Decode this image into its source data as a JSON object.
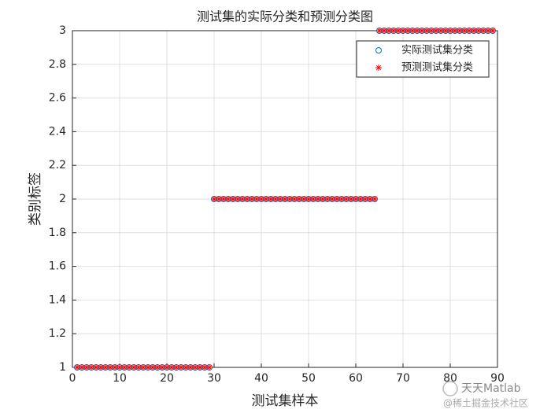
{
  "chart_data": {
    "type": "scatter",
    "title": "测试集的实际分类和预测分类图",
    "xlabel": "测试集样本",
    "ylabel": "类别标签",
    "x": [
      1,
      2,
      3,
      4,
      5,
      6,
      7,
      8,
      9,
      10,
      11,
      12,
      13,
      14,
      15,
      16,
      17,
      18,
      19,
      20,
      21,
      22,
      23,
      24,
      25,
      26,
      27,
      28,
      29,
      30,
      31,
      32,
      33,
      34,
      35,
      36,
      37,
      38,
      39,
      40,
      41,
      42,
      43,
      44,
      45,
      46,
      47,
      48,
      49,
      50,
      51,
      52,
      53,
      54,
      55,
      56,
      57,
      58,
      59,
      60,
      61,
      62,
      63,
      64,
      65,
      66,
      67,
      68,
      69,
      70,
      71,
      72,
      73,
      74,
      75,
      76,
      77,
      78,
      79,
      80,
      81,
      82,
      83,
      84,
      85,
      86,
      87,
      88,
      89
    ],
    "series": [
      {
        "name": "实际测试集分类",
        "color": "#0072bd",
        "marker": "o",
        "values": [
          1,
          1,
          1,
          1,
          1,
          1,
          1,
          1,
          1,
          1,
          1,
          1,
          1,
          1,
          1,
          1,
          1,
          1,
          1,
          1,
          1,
          1,
          1,
          1,
          1,
          1,
          1,
          1,
          1,
          2,
          2,
          2,
          2,
          2,
          2,
          2,
          2,
          2,
          2,
          2,
          2,
          2,
          2,
          2,
          2,
          2,
          2,
          2,
          2,
          2,
          2,
          2,
          2,
          2,
          2,
          2,
          2,
          2,
          2,
          2,
          2,
          2,
          2,
          2,
          3,
          3,
          3,
          3,
          3,
          3,
          3,
          3,
          3,
          3,
          3,
          3,
          3,
          3,
          3,
          3,
          3,
          3,
          3,
          3,
          3,
          3,
          3,
          3,
          3
        ]
      },
      {
        "name": "预测测试集分类",
        "color": "#ff0000",
        "marker": "*",
        "values": [
          1,
          1,
          1,
          1,
          1,
          1,
          1,
          1,
          1,
          1,
          1,
          1,
          1,
          1,
          1,
          1,
          1,
          1,
          1,
          1,
          1,
          1,
          1,
          1,
          1,
          1,
          1,
          1,
          1,
          2,
          2,
          2,
          2,
          2,
          2,
          2,
          2,
          2,
          2,
          2,
          2,
          2,
          2,
          2,
          2,
          2,
          2,
          2,
          2,
          2,
          2,
          2,
          2,
          2,
          2,
          2,
          2,
          2,
          2,
          2,
          2,
          2,
          2,
          2,
          3,
          3,
          3,
          3,
          3,
          3,
          3,
          3,
          3,
          3,
          3,
          3,
          3,
          3,
          3,
          3,
          3,
          3,
          3,
          3,
          3,
          3,
          3,
          3,
          3
        ]
      }
    ],
    "xlim": [
      0,
      90
    ],
    "xticks": [
      0,
      10,
      20,
      30,
      40,
      50,
      60,
      70,
      80,
      90
    ],
    "ylim": [
      1,
      3
    ],
    "yticks": [
      1,
      1.2,
      1.4,
      1.6,
      1.8,
      2,
      2.2,
      2.4,
      2.6,
      2.8,
      3
    ],
    "grid": true,
    "legend": "northeast",
    "annotations": [
      "天天Matlab",
      "@稀土掘金技术社区"
    ]
  }
}
